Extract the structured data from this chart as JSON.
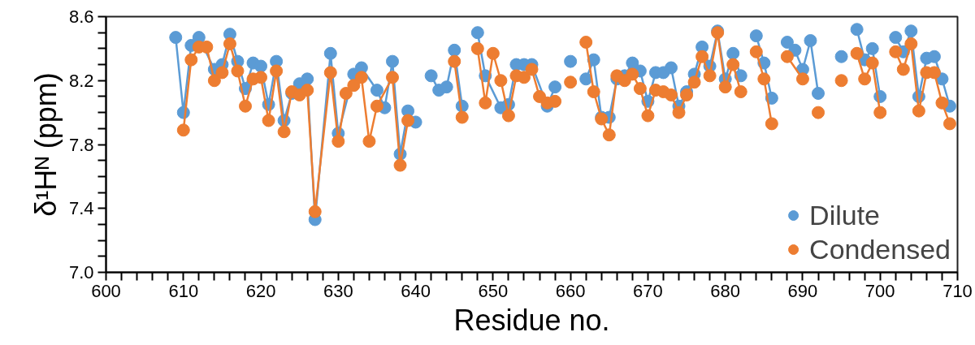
{
  "chart_data": {
    "type": "line",
    "xlabel": "Residue no.",
    "ylabel": "δ¹Hᴺ (ppm)",
    "marker": "circle",
    "line_style": "solid",
    "legend": "bottom right",
    "grid": false,
    "xlim": [
      600,
      710
    ],
    "ylim": [
      7.0,
      8.6
    ],
    "xticks": [
      600,
      {
        "value": 602,
        "label": null
      },
      {
        "value": 604,
        "label": null
      },
      {
        "value": 606,
        "label": null
      },
      {
        "value": 608,
        "label": null
      },
      610,
      {
        "value": 612,
        "label": null
      },
      {
        "value": 614,
        "label": null
      },
      {
        "value": 616,
        "label": null
      },
      {
        "value": 618,
        "label": null
      },
      620,
      {
        "value": 622,
        "label": null
      },
      {
        "value": 624,
        "label": null
      },
      {
        "value": 626,
        "label": null
      },
      {
        "value": 628,
        "label": null
      },
      630,
      {
        "value": 632,
        "label": null
      },
      {
        "value": 634,
        "label": null
      },
      {
        "value": 636,
        "label": null
      },
      {
        "value": 638,
        "label": null
      },
      640,
      {
        "value": 642,
        "label": null
      },
      {
        "value": 644,
        "label": null
      },
      {
        "value": 646,
        "label": null
      },
      {
        "value": 648,
        "label": null
      },
      650,
      {
        "value": 652,
        "label": null
      },
      {
        "value": 654,
        "label": null
      },
      {
        "value": 656,
        "label": null
      },
      {
        "value": 658,
        "label": null
      },
      660,
      {
        "value": 662,
        "label": null
      },
      {
        "value": 664,
        "label": null
      },
      {
        "value": 666,
        "label": null
      },
      {
        "value": 668,
        "label": null
      },
      670,
      {
        "value": 672,
        "label": null
      },
      {
        "value": 674,
        "label": null
      },
      {
        "value": 676,
        "label": null
      },
      {
        "value": 678,
        "label": null
      },
      680,
      {
        "value": 682,
        "label": null
      },
      {
        "value": 684,
        "label": null
      },
      {
        "value": 686,
        "label": null
      },
      {
        "value": 688,
        "label": null
      },
      690,
      {
        "value": 692,
        "label": null
      },
      {
        "value": 694,
        "label": null
      },
      {
        "value": 696,
        "label": null
      },
      {
        "value": 698,
        "label": null
      },
      700,
      {
        "value": 702,
        "label": null
      },
      {
        "value": 704,
        "label": null
      },
      {
        "value": 706,
        "label": null
      },
      {
        "value": 708,
        "label": null
      },
      710
    ],
    "yticks": [
      {
        "value": 7.0,
        "label": "7.0"
      },
      {
        "value": 7.1,
        "label": null
      },
      {
        "value": 7.2,
        "label": null
      },
      {
        "value": 7.3,
        "label": null
      },
      7.4,
      {
        "value": 7.5,
        "label": null
      },
      {
        "value": 7.6,
        "label": null
      },
      {
        "value": 7.7,
        "label": null
      },
      7.8,
      {
        "value": 7.9,
        "label": null
      },
      {
        "value": 8.0,
        "label": null
      },
      {
        "value": 8.1,
        "label": null
      },
      8.2,
      {
        "value": 8.3,
        "label": null
      },
      {
        "value": 8.4,
        "label": null
      },
      {
        "value": 8.5,
        "label": null
      },
      8.6
    ],
    "series": [
      {
        "name": "Dilute",
        "color": "#5b9bd5",
        "x": [
          609,
          610,
          611,
          612,
          614,
          615,
          616,
          617,
          618,
          619,
          620,
          621,
          622,
          623,
          624,
          625,
          626,
          627,
          629,
          630,
          632,
          633,
          635,
          636,
          637,
          638,
          639,
          640,
          641,
          642,
          643,
          644,
          645,
          646,
          647,
          648,
          649,
          651,
          652,
          653,
          654,
          655,
          657,
          658,
          659,
          660,
          661,
          662,
          663,
          664,
          665,
          666,
          667,
          668,
          669,
          670,
          671,
          672,
          673,
          674,
          675,
          676,
          677,
          678,
          679,
          680,
          681,
          682,
          683,
          684,
          685,
          686,
          687,
          688,
          689,
          690,
          691,
          692,
          693,
          695,
          696,
          697,
          698,
          699,
          700,
          701,
          702,
          703,
          704,
          705,
          706,
          707,
          708,
          709
        ],
        "values": [
          8.47,
          8.0,
          8.42,
          8.47,
          8.27,
          8.3,
          8.49,
          8.32,
          8.15,
          8.31,
          8.29,
          8.05,
          8.32,
          7.95,
          8.12,
          8.18,
          8.21,
          7.33,
          8.37,
          7.87,
          8.24,
          8.28,
          8.14,
          8.03,
          8.32,
          7.74,
          8.01,
          7.94,
          null,
          8.23,
          8.14,
          8.16,
          8.39,
          8.04,
          null,
          8.5,
          8.23,
          8.03,
          8.05,
          8.3,
          8.3,
          8.3,
          8.04,
          8.16,
          null,
          8.32,
          null,
          8.21,
          8.33,
          7.97,
          7.97,
          8.21,
          8.23,
          8.31,
          8.26,
          8.07,
          8.25,
          8.25,
          8.28,
          8.04,
          8.13,
          8.24,
          8.41,
          8.29,
          8.51,
          8.21,
          8.37,
          8.23,
          null,
          8.48,
          8.31,
          8.09,
          null,
          8.44,
          8.39,
          8.27,
          8.45,
          8.12,
          null,
          8.35,
          null,
          8.52,
          8.33,
          8.4,
          8.1,
          null,
          8.47,
          8.38,
          8.51,
          8.1,
          8.34,
          8.35,
          8.21,
          8.04
        ]
      },
      {
        "name": "Condensed",
        "color": "#ed7d31",
        "x": [
          610,
          611,
          612,
          613,
          614,
          615,
          616,
          617,
          618,
          619,
          620,
          621,
          622,
          623,
          624,
          625,
          626,
          627,
          629,
          630,
          631,
          632,
          633,
          634,
          635,
          637,
          638,
          639,
          640,
          645,
          646,
          647,
          648,
          649,
          650,
          651,
          652,
          653,
          654,
          655,
          656,
          657,
          658,
          659,
          660,
          661,
          662,
          663,
          664,
          665,
          666,
          667,
          668,
          669,
          670,
          671,
          672,
          673,
          674,
          675,
          676,
          677,
          678,
          679,
          680,
          681,
          682,
          683,
          684,
          685,
          686,
          687,
          688,
          690,
          691,
          692,
          693,
          695,
          696,
          697,
          698,
          699,
          700,
          701,
          702,
          703,
          704,
          705,
          706,
          707,
          708,
          709
        ],
        "values": [
          7.89,
          8.33,
          8.41,
          8.41,
          8.2,
          8.25,
          8.43,
          8.26,
          8.04,
          8.21,
          8.22,
          7.95,
          8.26,
          7.88,
          8.13,
          8.11,
          8.14,
          7.38,
          8.25,
          7.82,
          8.12,
          8.17,
          8.22,
          7.82,
          8.04,
          8.22,
          7.67,
          7.95,
          null,
          8.32,
          7.97,
          null,
          8.4,
          8.06,
          8.37,
          8.2,
          7.98,
          8.23,
          8.22,
          8.27,
          8.1,
          8.06,
          8.07,
          null,
          8.19,
          null,
          8.44,
          8.13,
          7.96,
          7.86,
          8.23,
          8.2,
          8.24,
          8.15,
          7.98,
          8.14,
          8.13,
          8.11,
          8.0,
          8.11,
          8.19,
          8.35,
          8.23,
          8.5,
          8.16,
          8.3,
          8.13,
          null,
          8.38,
          8.21,
          7.93,
          null,
          8.35,
          8.21,
          null,
          8.0,
          null,
          8.2,
          null,
          8.37,
          8.21,
          8.31,
          8.0,
          null,
          8.38,
          8.27,
          8.43,
          8.01,
          8.25,
          8.25,
          8.06,
          7.93
        ]
      }
    ]
  }
}
